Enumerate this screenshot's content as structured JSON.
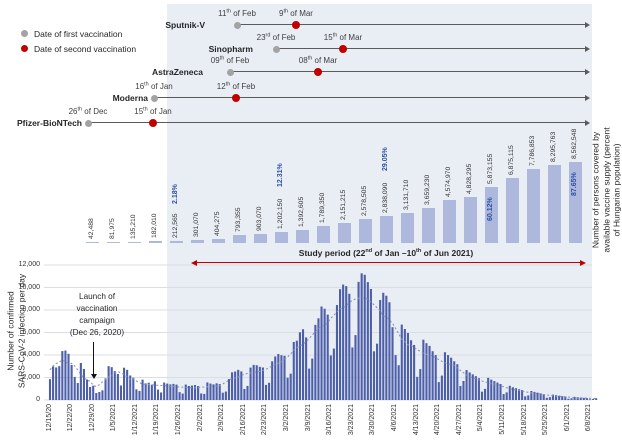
{
  "colors": {
    "band": "#e9edf4",
    "supply_bar": "#aeb8dc",
    "daily_bar": "#4d5fa9",
    "red_accent": "#c00000",
    "gray_dot": "#a3a3a3",
    "pct_blue": "#2e4fa5",
    "grid": "#d9dde6",
    "trend": "#8a94c0"
  },
  "legend": {
    "first": "Date of first vaccination",
    "second": "Date of second vaccination"
  },
  "timelines": [
    {
      "name": "Sputnik-V",
      "first_date": "11th of Feb",
      "second_date": "9th of Mar"
    },
    {
      "name": "Sinopharm",
      "first_date": "23rd of Feb",
      "second_date": "15th of Mar"
    },
    {
      "name": "AstraZeneca",
      "first_date": "09th of Feb",
      "second_date": "08th of Mar"
    },
    {
      "name": "Moderna",
      "first_date": "16th of Jan",
      "second_date": "12th of Feb"
    },
    {
      "name": "Pfizer-BioNTech",
      "first_date": "26th of Dec",
      "second_date": "15th of Jan"
    }
  ],
  "study_period_label": "Study period (22nd of Jan –10th of Jun 2021)",
  "annotation": {
    "lines": [
      "Launch of",
      "vaccination",
      "campaign",
      "(Dec 26, 2020)"
    ]
  },
  "right_axis_label_lines": [
    "Number of persons covered by",
    "available vaccine supply (percent",
    "of Hungarian population)"
  ],
  "left_axis_label_lines": [
    "Number of confirmed",
    "SARS-CoV-2 infection per day"
  ],
  "chart_data": [
    {
      "id": "vaccine_supply",
      "type": "bar",
      "ylabel": "Number of persons covered by available vaccine supply (percent of Hungarian population)",
      "values": [
        42488,
        81975,
        135210,
        182010,
        212565,
        301070,
        404275,
        793355,
        903070,
        1202150,
        1392605,
        1789350,
        2151215,
        2578505,
        2838090,
        3131710,
        3659230,
        4574970,
        4828295,
        5873155,
        6875115,
        7786853,
        8295763,
        8562548
      ],
      "labels": [
        "42,488",
        "81,975",
        "135,210",
        "182,010",
        "212,565",
        "301,070",
        "404,275",
        "793,355",
        "903,070",
        "1,202,150",
        "1,392,605",
        "1,789,350",
        "2,151,215",
        "2,578,505",
        "2,838,090",
        "3,131,710",
        "3,659,230",
        "4,574,970",
        "4,828,295",
        "5,873,155",
        "6,875,115",
        "7,786,853",
        "8,295,763",
        "8,562,548"
      ],
      "pct_annotations": [
        {
          "index": 4,
          "text": "2.18%",
          "placement": "above"
        },
        {
          "index": 9,
          "text": "12.31%",
          "placement": "above"
        },
        {
          "index": 14,
          "text": "29.05%",
          "placement": "above"
        },
        {
          "index": 19,
          "text": "60.12%",
          "placement": "inside"
        },
        {
          "index": 23,
          "text": "87.65%",
          "placement": "inside"
        }
      ],
      "ylim": [
        0,
        8562548
      ]
    },
    {
      "id": "daily_cases",
      "type": "bar",
      "ylabel": "Number of confirmed SARS-CoV-2 infection per day",
      "start_date": "12/15/20",
      "x_tick_labels": [
        "12/15/20",
        "12/22/20",
        "12/29/20",
        "1/5/2021",
        "1/12/2021",
        "1/19/2021",
        "1/26/2021",
        "2/2/2021",
        "2/9/2021",
        "2/16/2021",
        "2/23/2021",
        "3/2/2021",
        "3/9/2021",
        "3/16/2021",
        "3/23/2021",
        "3/30/2021",
        "4/6/2021",
        "4/13/2021",
        "4/20/2021",
        "4/27/2021",
        "5/4/2021",
        "5/11/2021",
        "5/18/2021",
        "5/25/2021",
        "6/1/2021",
        "6/8/2021"
      ],
      "y_tick_labels": [
        "0",
        "2,000",
        "4,000",
        "6,000",
        "8,000",
        "10,000",
        "12,000"
      ],
      "ylim": [
        0,
        12000
      ],
      "grid": true,
      "trendline": "7-day moving average (dotted)",
      "values": [
        1850,
        2980,
        2890,
        3010,
        4350,
        4400,
        4110,
        3120,
        2050,
        1510,
        3290,
        2760,
        1820,
        1160,
        1270,
        620,
        710,
        860,
        1920,
        3010,
        2920,
        2570,
        2310,
        1290,
        2870,
        2680,
        2180,
        1980,
        950,
        810,
        1810,
        1480,
        1540,
        1360,
        1660,
        930,
        670,
        1550,
        1460,
        1390,
        1430,
        1370,
        700,
        570,
        1370,
        1250,
        1280,
        1330,
        1240,
        580,
        540,
        1560,
        1460,
        1390,
        1480,
        1420,
        650,
        750,
        1860,
        2460,
        2530,
        2680,
        2540,
        980,
        1250,
        2880,
        3120,
        3090,
        2950,
        2890,
        1340,
        1530,
        3440,
        3870,
        4090,
        3980,
        3930,
        1980,
        2340,
        5160,
        5270,
        6020,
        6290,
        5560,
        2790,
        3680,
        6680,
        7260,
        8310,
        8110,
        7590,
        3960,
        4570,
        8440,
        9850,
        10260,
        10120,
        9440,
        4670,
        5770,
        10500,
        11260,
        11130,
        10480,
        9870,
        4330,
        5010,
        8890,
        9530,
        9270,
        8690,
        6470,
        3990,
        3090,
        6700,
        6310,
        5960,
        5310,
        4890,
        2060,
        2750,
        5360,
        5050,
        4810,
        4340,
        3990,
        1590,
        2170,
        4250,
        3990,
        3760,
        3440,
        3180,
        1250,
        1690,
        2660,
        2450,
        2280,
        2120,
        1940,
        740,
        990,
        1970,
        1810,
        1680,
        1550,
        1420,
        530,
        680,
        1260,
        1130,
        1050,
        960,
        880,
        330,
        410,
        800,
        720,
        650,
        590,
        530,
        200,
        250,
        480,
        430,
        380,
        340,
        310,
        110,
        150,
        280,
        250,
        220,
        190,
        170,
        60,
        90,
        160
      ]
    }
  ]
}
